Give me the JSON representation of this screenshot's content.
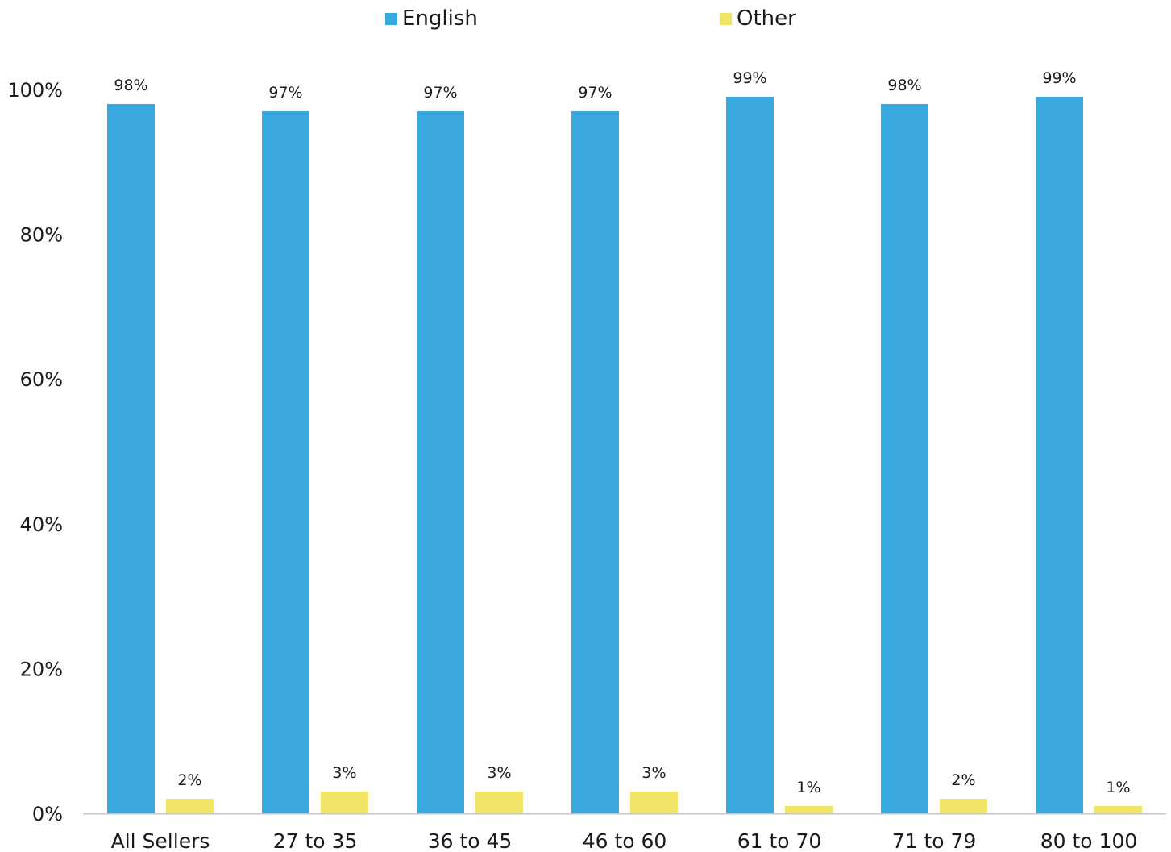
{
  "chart_data": {
    "type": "bar",
    "categories": [
      "All Sellers",
      "27 to 35",
      "36 to 45",
      "46 to 60",
      "61 to 70",
      "71 to 79",
      "80 to 100"
    ],
    "series": [
      {
        "name": "English",
        "color": "#3BA8DF",
        "values": [
          98,
          97,
          97,
          97,
          99,
          98,
          99
        ],
        "labels": [
          "98%",
          "97%",
          "97%",
          "97%",
          "99%",
          "98%",
          "99%"
        ]
      },
      {
        "name": "Other",
        "color": "#F2E466",
        "values": [
          2,
          3,
          3,
          3,
          1,
          2,
          1
        ],
        "labels": [
          "2%",
          "3%",
          "3%",
          "3%",
          "1%",
          "2%",
          "1%"
        ]
      }
    ],
    "ylim": [
      0,
      100
    ],
    "yticks": [
      0,
      20,
      40,
      60,
      80,
      100
    ],
    "ytick_labels": [
      "0%",
      "20%",
      "40%",
      "60%",
      "80%",
      "100%"
    ],
    "legend_position": "top-center",
    "grid": false,
    "title": "",
    "xlabel": "",
    "ylabel": ""
  }
}
